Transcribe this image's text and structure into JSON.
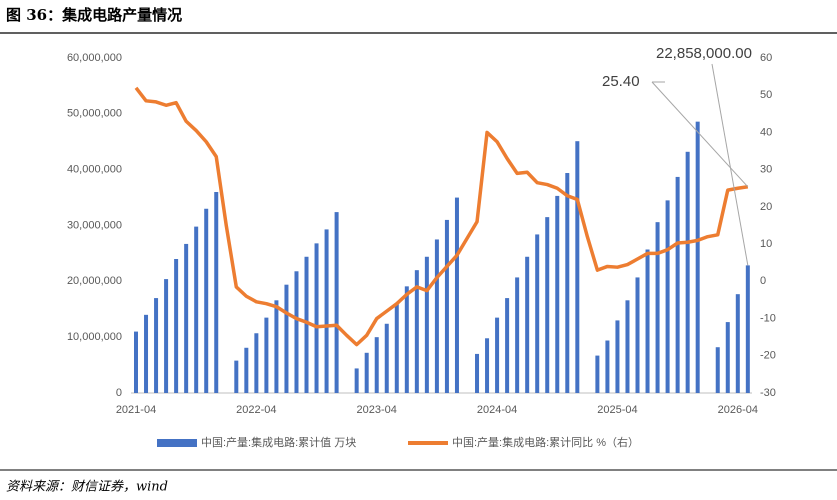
{
  "title": "图 36：集成电路产量情况",
  "source": "资料来源：财信证券，wind",
  "chart_data": {
    "type": "bar-line",
    "categories": [
      "2021-04",
      null,
      null,
      null,
      null,
      null,
      null,
      null,
      null,
      null,
      null,
      null,
      "2022-04",
      null,
      null,
      null,
      null,
      null,
      null,
      null,
      null,
      null,
      null,
      null,
      "2023-04",
      null,
      null,
      null,
      null,
      null,
      null,
      null,
      null,
      null,
      null,
      null,
      "2024-04",
      null,
      null,
      null,
      null,
      null,
      null,
      null,
      null,
      null,
      null,
      null,
      "2025-04",
      null,
      null,
      null,
      null,
      null,
      null,
      null,
      null,
      null,
      null,
      null,
      "2026-04",
      null
    ],
    "ylim": [
      0,
      60000000
    ],
    "yticks": [
      {
        "value": 0,
        "label": "0"
      },
      {
        "value": 10000000,
        "label": "10,000,000"
      },
      {
        "value": 20000000,
        "label": "20,000,000"
      },
      {
        "value": 30000000,
        "label": "30,000,000"
      },
      {
        "value": 40000000,
        "label": "40,000,000"
      },
      {
        "value": 50000000,
        "label": "50,000,000"
      },
      {
        "value": 60000000,
        "label": "60,000,000"
      }
    ],
    "y2lim": [
      -30,
      60
    ],
    "y2ticks": [
      -30,
      -20,
      -10,
      0,
      10,
      20,
      30,
      40,
      50,
      60
    ],
    "series": [
      {
        "name": "中国:产量:集成电路:累计值 万块",
        "type": "bar",
        "color": "#4472c4",
        "values": [
          11000000,
          14000000,
          17000000,
          20400000,
          24000000,
          26700000,
          29800000,
          33000000,
          36000000,
          null,
          5800000,
          8100000,
          10700000,
          13500000,
          16600000,
          19400000,
          21800000,
          24400000,
          26800000,
          29300000,
          32400000,
          null,
          4400000,
          7200000,
          10000000,
          12400000,
          15900000,
          19100000,
          22000000,
          24400000,
          27500000,
          31000000,
          35000000,
          null,
          7000000,
          9800000,
          13500000,
          17000000,
          20700000,
          24400000,
          28400000,
          31500000,
          35300000,
          39400000,
          45100000,
          null,
          6700000,
          9400000,
          13000000,
          16600000,
          20700000,
          25700000,
          30600000,
          34500000,
          38700000,
          43200000,
          48600000,
          null,
          8200000,
          12700000,
          17700000,
          22858000
        ],
        "value_labels": [
          null,
          null,
          null,
          null,
          null,
          null,
          null,
          null,
          null,
          null,
          null,
          null,
          null,
          null,
          null,
          null,
          null,
          null,
          null,
          null,
          null,
          null,
          null,
          null,
          null,
          null,
          null,
          null,
          null,
          null,
          null,
          null,
          null,
          null,
          null,
          null,
          null,
          null,
          null,
          null,
          null,
          null,
          null,
          null,
          null,
          null,
          null,
          null,
          null,
          null,
          null,
          null,
          null,
          null,
          null,
          null,
          null,
          null,
          null,
          null,
          null,
          "22,858,000.00"
        ]
      },
      {
        "name": "中国:产量:集成电路:累计同比 %（右）",
        "type": "line",
        "axis": "y2",
        "color": "#ed7d31",
        "values": [
          52,
          48.5,
          48.2,
          47.3,
          48,
          43,
          40.5,
          37.5,
          33.5,
          15,
          -1.5,
          -4,
          -5.5,
          -6,
          -6.8,
          -8.5,
          -10,
          -11,
          -12.2,
          -12,
          -11.8,
          -14.5,
          -17,
          -14.5,
          -10,
          -8,
          -6,
          -3.5,
          -1.5,
          -2.5,
          1,
          4,
          7,
          11.5,
          16,
          40,
          37.5,
          33,
          29,
          29.3,
          26.5,
          26,
          25,
          23,
          22,
          12,
          3,
          4,
          3.8,
          4.5,
          6,
          7.5,
          7.5,
          8.5,
          10.3,
          10.5,
          11,
          12,
          12.5,
          24.5,
          25,
          25.4
        ],
        "value_labels": [
          null,
          null,
          null,
          null,
          null,
          null,
          null,
          null,
          null,
          null,
          null,
          null,
          null,
          null,
          null,
          null,
          null,
          null,
          null,
          null,
          null,
          null,
          null,
          null,
          null,
          null,
          null,
          null,
          null,
          null,
          null,
          null,
          null,
          null,
          null,
          null,
          null,
          null,
          null,
          null,
          null,
          null,
          null,
          null,
          null,
          null,
          null,
          null,
          null,
          null,
          null,
          null,
          null,
          null,
          null,
          null,
          null,
          null,
          null,
          null,
          null,
          "25.40"
        ]
      }
    ]
  }
}
